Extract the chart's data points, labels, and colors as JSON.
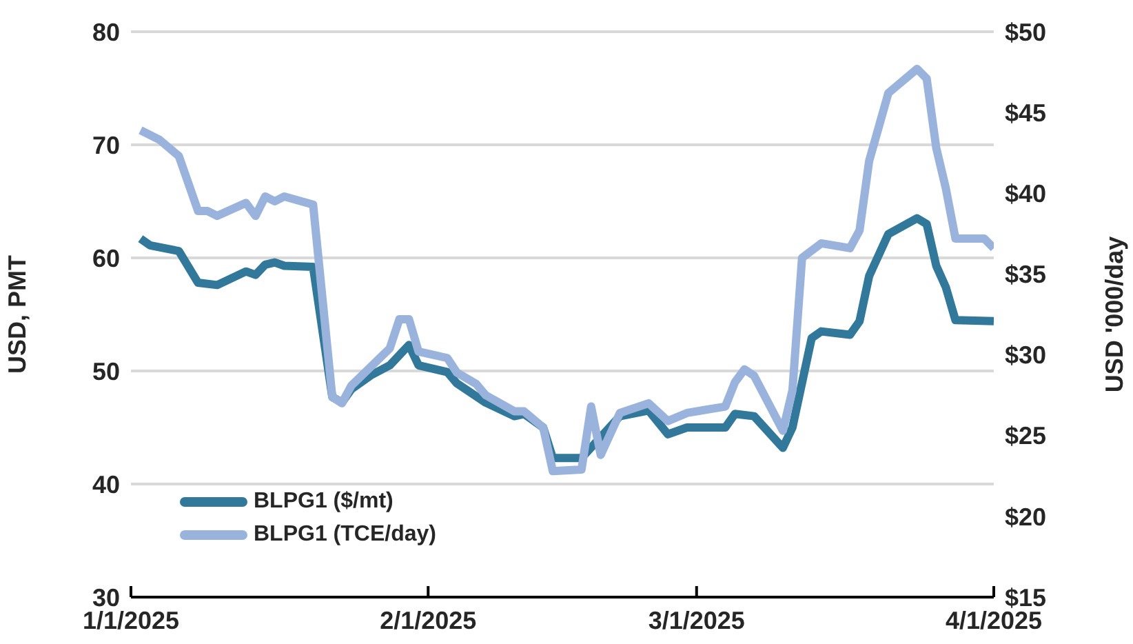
{
  "chart_data": {
    "type": "line",
    "ylabel": "USD, PMT",
    "y2label": "USD '000/day",
    "xlim": [
      "2025-01-01",
      "2025-04-01"
    ],
    "xticks": [
      {
        "value": "2025-01-01",
        "label": "1/1/2025"
      },
      {
        "value": "2025-02-01",
        "label": "2/1/2025"
      },
      {
        "value": "2025-03-01",
        "label": "3/1/2025"
      },
      {
        "value": "2025-04-01",
        "label": "4/1/2025"
      }
    ],
    "ylim": [
      30,
      80
    ],
    "yticks": [
      30,
      40,
      50,
      60,
      70,
      80
    ],
    "y2lim": [
      15,
      50
    ],
    "y2ticks": [
      {
        "value": 15,
        "label": "$15"
      },
      {
        "value": 20,
        "label": "$20"
      },
      {
        "value": 25,
        "label": "$25"
      },
      {
        "value": 30,
        "label": "$30"
      },
      {
        "value": 35,
        "label": "$35"
      },
      {
        "value": 40,
        "label": "$40"
      },
      {
        "value": 45,
        "label": "$45"
      },
      {
        "value": 50,
        "label": "$50"
      }
    ],
    "grid": "y",
    "legend": "bottom left",
    "marker": "none",
    "line_style": "solid",
    "series": [
      {
        "name": "BLPG1 ($/mt)",
        "color": "#31789a",
        "x": [
          "2025-01-02",
          "2025-01-03",
          "2025-01-06",
          "2025-01-08",
          "2025-01-10",
          "2025-01-13",
          "2025-01-14",
          "2025-01-15",
          "2025-01-16",
          "2025-01-17",
          "2025-01-20",
          "2025-01-22",
          "2025-01-23",
          "2025-01-24",
          "2025-01-26",
          "2025-01-28",
          "2025-01-30",
          "2025-01-31",
          "2025-02-03",
          "2025-02-04",
          "2025-02-07",
          "2025-02-10",
          "2025-02-11",
          "2025-02-13",
          "2025-02-14",
          "2025-02-17",
          "2025-02-21",
          "2025-02-24",
          "2025-02-26",
          "2025-02-28",
          "2025-03-04",
          "2025-03-05",
          "2025-03-07",
          "2025-03-10",
          "2025-03-11",
          "2025-03-13",
          "2025-03-14",
          "2025-03-17",
          "2025-03-18",
          "2025-03-19",
          "2025-03-21",
          "2025-03-24",
          "2025-03-25",
          "2025-03-26",
          "2025-03-27",
          "2025-03-28",
          "2025-04-01"
        ],
        "values": [
          61.7,
          61.1,
          60.6,
          57.8,
          57.6,
          58.8,
          58.5,
          59.4,
          59.6,
          59.3,
          59.2,
          47.7,
          47.2,
          48.4,
          49.6,
          50.5,
          52.3,
          50.5,
          49.9,
          48.9,
          47.2,
          46.0,
          46.2,
          45.0,
          42.3,
          42.3,
          46.0,
          46.5,
          44.4,
          45.0,
          45.0,
          46.2,
          46.0,
          43.2,
          45.0,
          52.9,
          53.5,
          53.2,
          54.4,
          58.4,
          62.1,
          63.5,
          63.0,
          59.3,
          57.4,
          54.5,
          54.4
        ]
      },
      {
        "name": "BLPG1 (TCE/day)",
        "color": "#9ab3dc",
        "axis": "y2",
        "x": [
          "2025-01-02",
          "2025-01-04",
          "2025-01-06",
          "2025-01-08",
          "2025-01-09",
          "2025-01-10",
          "2025-01-13",
          "2025-01-14",
          "2025-01-15",
          "2025-01-16",
          "2025-01-17",
          "2025-01-20",
          "2025-01-22",
          "2025-01-23",
          "2025-01-24",
          "2025-01-28",
          "2025-01-29",
          "2025-01-30",
          "2025-01-31",
          "2025-02-03",
          "2025-02-04",
          "2025-02-06",
          "2025-02-07",
          "2025-02-10",
          "2025-02-11",
          "2025-02-13",
          "2025-02-14",
          "2025-02-17",
          "2025-02-18",
          "2025-02-19",
          "2025-02-21",
          "2025-02-24",
          "2025-02-26",
          "2025-02-28",
          "2025-03-04",
          "2025-03-05",
          "2025-03-06",
          "2025-03-07",
          "2025-03-10",
          "2025-03-11",
          "2025-03-12",
          "2025-03-14",
          "2025-03-17",
          "2025-03-18",
          "2025-03-19",
          "2025-03-21",
          "2025-03-24",
          "2025-03-25",
          "2025-03-26",
          "2025-03-27",
          "2025-03-28",
          "2025-03-31",
          "2025-04-01"
        ],
        "values": [
          43.9,
          43.3,
          42.3,
          38.9,
          38.9,
          38.6,
          39.4,
          38.6,
          39.8,
          39.5,
          39.8,
          39.3,
          27.4,
          27.0,
          28.1,
          30.4,
          32.2,
          32.2,
          30.2,
          29.8,
          28.9,
          28.2,
          27.5,
          26.5,
          26.5,
          25.5,
          22.8,
          22.9,
          26.8,
          23.8,
          26.4,
          27.0,
          25.9,
          26.4,
          26.8,
          28.3,
          29.1,
          28.7,
          25.3,
          27.8,
          36.0,
          36.9,
          36.6,
          37.7,
          42.0,
          46.2,
          47.7,
          47.1,
          42.8,
          40.3,
          37.2,
          37.2,
          36.6
        ]
      }
    ]
  }
}
